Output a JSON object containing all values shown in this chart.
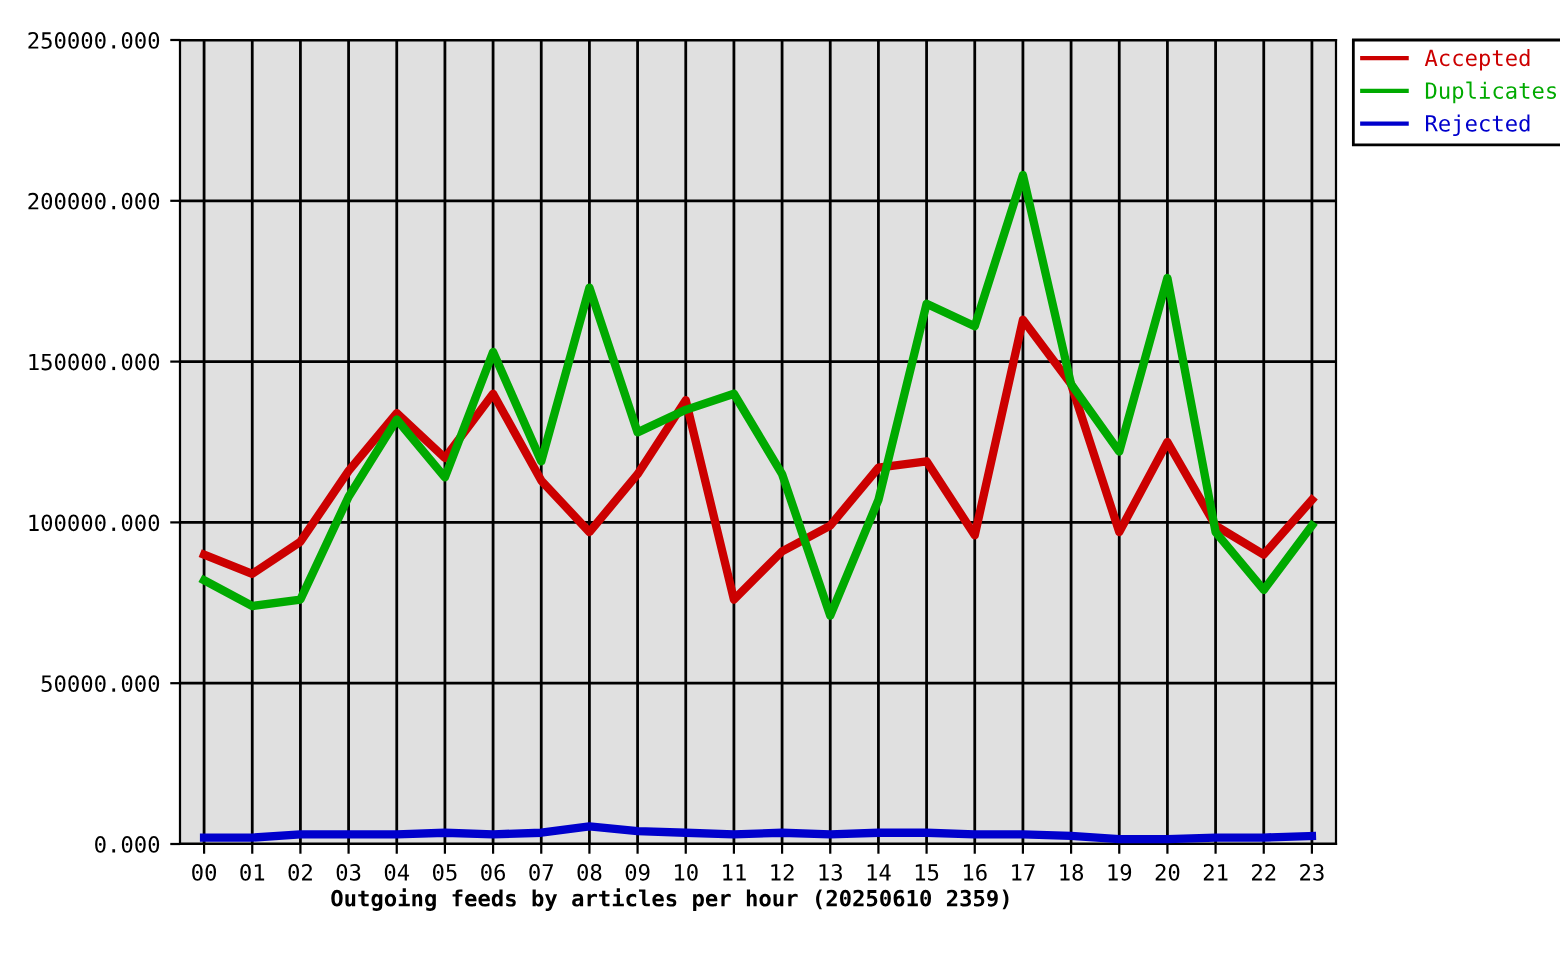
{
  "chart_data": {
    "type": "line",
    "xlabel": "Outgoing feeds by articles per hour (20250610 2359)",
    "categories": [
      "00",
      "01",
      "02",
      "03",
      "04",
      "05",
      "06",
      "07",
      "08",
      "09",
      "10",
      "11",
      "12",
      "13",
      "14",
      "15",
      "16",
      "17",
      "18",
      "19",
      "20",
      "21",
      "22",
      "23"
    ],
    "series": [
      {
        "name": "Accepted",
        "color": "#cc0000",
        "values": [
          90000,
          84000,
          94000,
          116000,
          134000,
          120000,
          140000,
          113000,
          97000,
          115000,
          138000,
          76000,
          91000,
          99000,
          117000,
          119000,
          96000,
          163000,
          143000,
          97000,
          125000,
          99000,
          90000,
          107000
        ]
      },
      {
        "name": "Duplicates",
        "color": "#00aa00",
        "values": [
          82000,
          74000,
          76000,
          108000,
          132000,
          114000,
          153000,
          119000,
          173000,
          128000,
          135000,
          140000,
          115000,
          71000,
          107000,
          168000,
          161000,
          208000,
          143000,
          122000,
          176000,
          97000,
          79000,
          99000
        ]
      },
      {
        "name": "Rejected",
        "color": "#0000cc",
        "values": [
          2000,
          2000,
          3000,
          3000,
          3000,
          3500,
          3000,
          3500,
          5500,
          4000,
          3500,
          3000,
          3500,
          3000,
          3500,
          3500,
          3000,
          3000,
          2500,
          1500,
          1500,
          2000,
          2000,
          2500
        ]
      }
    ],
    "ylim": [
      0,
      250000
    ],
    "yticks": [
      {
        "value": 0,
        "label": "0.000"
      },
      {
        "value": 50000,
        "label": "50000.000"
      },
      {
        "value": 100000,
        "label": "100000.000"
      },
      {
        "value": 150000,
        "label": "150000.000"
      },
      {
        "value": 200000,
        "label": "200000.000"
      },
      {
        "value": 250000,
        "label": "250000.000"
      }
    ],
    "grid": true,
    "legend": "top right",
    "marker": "none",
    "line_style": "solid"
  }
}
